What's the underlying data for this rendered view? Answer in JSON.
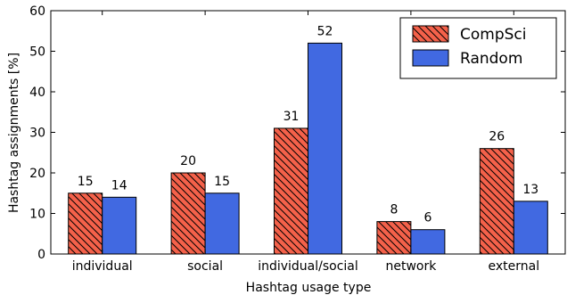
{
  "chart_data": {
    "type": "bar",
    "categories": [
      "individual",
      "social",
      "individual/social",
      "network",
      "external"
    ],
    "series": [
      {
        "name": "CompSci",
        "values": [
          15,
          20,
          31,
          8,
          26
        ],
        "color": "#f4614a",
        "hatch": "diagonal"
      },
      {
        "name": "Random",
        "values": [
          14,
          15,
          52,
          6,
          13
        ],
        "color": "#4169e1",
        "hatch": "none"
      }
    ],
    "title": "",
    "xlabel": "Hashtag usage type",
    "ylabel": "Hashtag assignments [%]",
    "ylim": [
      0,
      60
    ],
    "yticks": [
      0,
      10,
      20,
      30,
      40,
      50,
      60
    ],
    "grid": false,
    "legend_position": "top-right",
    "data_labels": true
  }
}
